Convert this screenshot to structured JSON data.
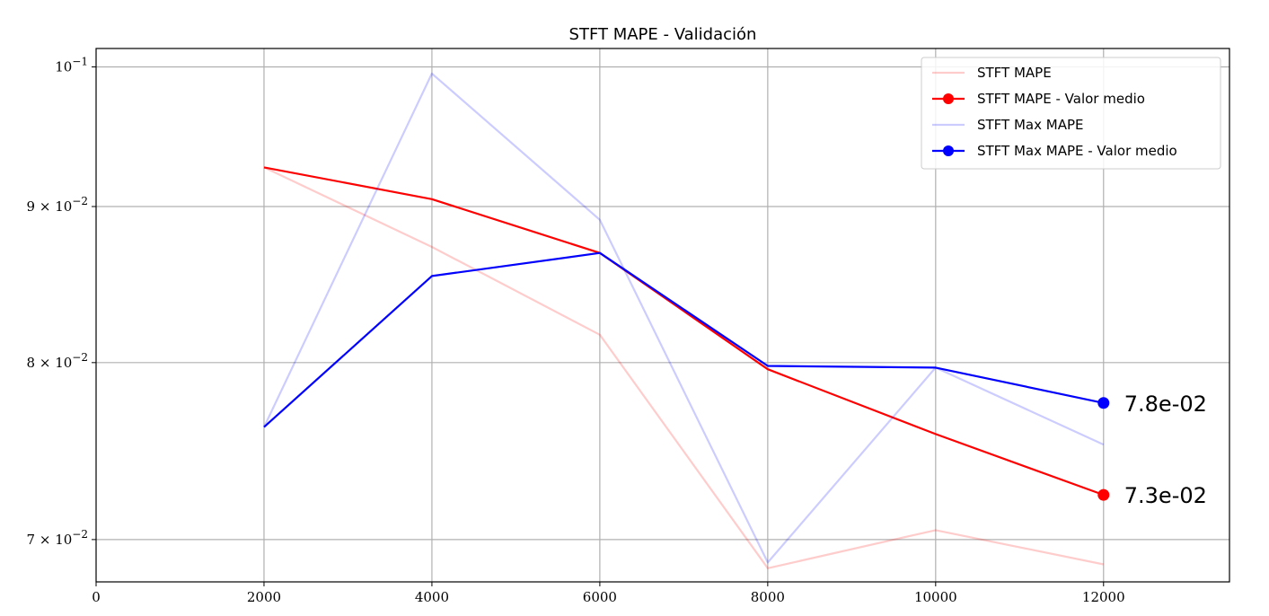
{
  "chart_data": {
    "type": "line",
    "title": "STFT MAPE - Validación",
    "xlabel": "",
    "ylabel": "",
    "xlim": [
      0,
      13500
    ],
    "ylim": [
      0.0678,
      0.1014
    ],
    "yscale": "log",
    "grid": true,
    "legend_position": "top-right",
    "x": [
      2000,
      4000,
      6000,
      8000,
      10000,
      12000
    ],
    "x_ticks": [
      {
        "value": 0,
        "label": "0"
      },
      {
        "value": 2000,
        "label": "2000"
      },
      {
        "value": 4000,
        "label": "4000"
      },
      {
        "value": 6000,
        "label": "6000"
      },
      {
        "value": 8000,
        "label": "8000"
      },
      {
        "value": 10000,
        "label": "10000"
      },
      {
        "value": 12000,
        "label": "12000"
      }
    ],
    "y_ticks": [
      {
        "value": 0.1,
        "mantissa": "",
        "exponent": "−1"
      },
      {
        "value": 0.09,
        "mantissa": "9 × ",
        "exponent": "−2"
      },
      {
        "value": 0.08,
        "mantissa": "8 × ",
        "exponent": "−2"
      },
      {
        "value": 0.07,
        "mantissa": "7 × ",
        "exponent": "−2"
      }
    ],
    "series": [
      {
        "name": "STFT MAPE",
        "color": "#ff0000",
        "opacity": 0.2,
        "markers": false,
        "values": [
          0.0927,
          0.0873,
          0.0817,
          0.0685,
          0.0705,
          0.0687
        ]
      },
      {
        "name": "STFT MAPE - Valor medio",
        "color": "#ff0000",
        "opacity": 1.0,
        "markers": true,
        "values": [
          0.0927,
          0.0905,
          0.0869,
          0.0796,
          0.0758,
          0.0724
        ]
      },
      {
        "name": "STFT Max MAPE",
        "color": "#0000ff",
        "opacity": 0.2,
        "markers": false,
        "values": [
          0.0762,
          0.0995,
          0.0891,
          0.0688,
          0.0797,
          0.0752
        ]
      },
      {
        "name": "STFT Max MAPE - Valor medio",
        "color": "#0000ff",
        "opacity": 1.0,
        "markers": true,
        "values": [
          0.0762,
          0.0854,
          0.0869,
          0.0798,
          0.0797,
          0.0776
        ]
      }
    ],
    "annotations": [
      {
        "x": 12000,
        "y": 0.0776,
        "text": "7.8e-02",
        "color": "#0000ff"
      },
      {
        "x": 12000,
        "y": 0.0724,
        "text": "7.3e-02",
        "color": "#ff0000"
      }
    ]
  }
}
